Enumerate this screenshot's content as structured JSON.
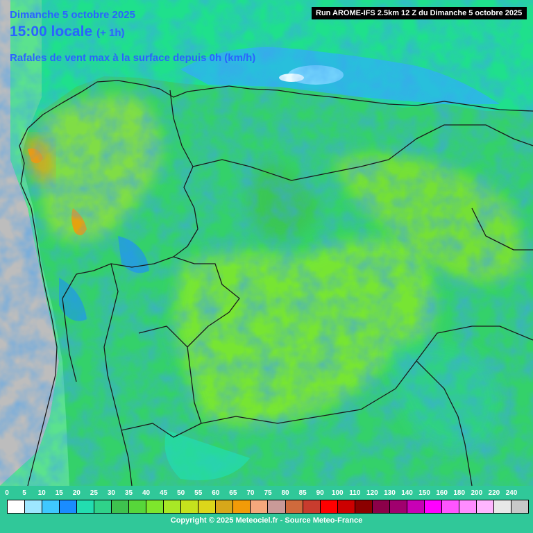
{
  "header": {
    "date": "Dimanche 5 octobre 2025",
    "hour": "15:00 locale",
    "offset": "(+ 1h)",
    "subtitle": "Rafales de vent max à la surface depuis 0h (km/h)",
    "run": "Run AROME-IFS 2.5km 12 Z du Dimanche 5 octobre 2025"
  },
  "legend": {
    "labels": [
      "0",
      "5",
      "10",
      "15",
      "20",
      "25",
      "30",
      "35",
      "40",
      "45",
      "50",
      "55",
      "60",
      "65",
      "70",
      "75",
      "80",
      "85",
      "90",
      "100",
      "110",
      "120",
      "130",
      "140",
      "150",
      "160",
      "180",
      "200",
      "220",
      "240"
    ],
    "colors": [
      "#ffffff",
      "#9ee7ff",
      "#3fc8ff",
      "#1a8cff",
      "#22ddb0",
      "#2fd28a",
      "#3ec24e",
      "#57d63a",
      "#7ee62c",
      "#a8e826",
      "#c6e21d",
      "#dcd61a",
      "#d7a71a",
      "#f29b08",
      "#f5a87c",
      "#c99a98",
      "#cf6a3c",
      "#c83c2e",
      "#ff0000",
      "#cc0000",
      "#8b0000",
      "#8b0049",
      "#a0006e",
      "#c800b5",
      "#ff00ff",
      "#ff55ff",
      "#ff8cff",
      "#ffb6ff",
      "#e8e8e8",
      "#c8c8c8"
    ]
  },
  "footer": {
    "copyright": "Copyright © 2025 Meteociel.fr - Source Meteo-France"
  }
}
